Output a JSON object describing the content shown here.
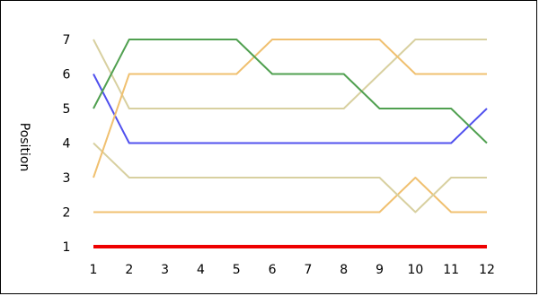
{
  "chart_data": {
    "type": "line",
    "title": "",
    "xlabel": "",
    "ylabel": "Position",
    "x": [
      1,
      2,
      3,
      4,
      5,
      6,
      7,
      8,
      9,
      10,
      11,
      12
    ],
    "xlim": [
      1,
      12
    ],
    "ylim": [
      1,
      7
    ],
    "yticks": [
      1,
      2,
      3,
      4,
      5,
      6,
      7
    ],
    "grid": false,
    "legend": "none",
    "series": [
      {
        "color": "#ee0000",
        "values": [
          1,
          1,
          1,
          1,
          1,
          1,
          1,
          1,
          1,
          1,
          1,
          1
        ]
      },
      {
        "color": "#f0c070",
        "values": [
          2,
          2,
          2,
          2,
          2,
          2,
          2,
          2,
          2,
          3,
          2,
          2
        ]
      },
      {
        "color": "#d8d0a0",
        "values": [
          4,
          3,
          3,
          3,
          3,
          3,
          3,
          3,
          3,
          2,
          3,
          3
        ]
      },
      {
        "color": "#5050ee",
        "values": [
          6,
          4,
          4,
          4,
          4,
          4,
          4,
          4,
          4,
          4,
          4,
          5
        ]
      },
      {
        "color": "#d8d0a0",
        "values": [
          7,
          5,
          5,
          5,
          5,
          5,
          5,
          5,
          6,
          7,
          7,
          7
        ]
      },
      {
        "color": "#f0c070",
        "values": [
          3,
          6,
          6,
          6,
          6,
          7,
          7,
          7,
          7,
          6,
          6,
          6
        ]
      },
      {
        "color": "#50a050",
        "values": [
          5,
          7,
          7,
          7,
          7,
          6,
          6,
          6,
          5,
          5,
          5,
          4
        ]
      }
    ]
  }
}
